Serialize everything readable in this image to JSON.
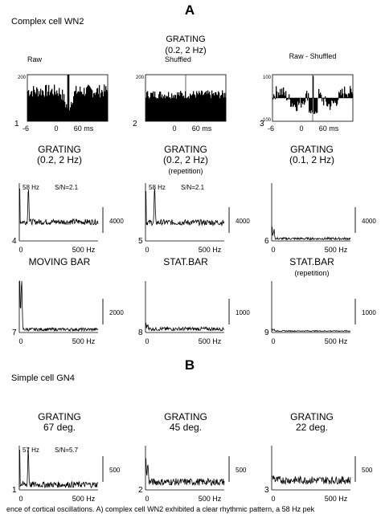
{
  "figure": {
    "section_a_label": "A",
    "section_a_cell": "Complex cell WN2",
    "section_b_label": "B",
    "section_b_cell": "Simple cell GN4",
    "caption_fragment": "ence of cortical oscillations. A) complex cell WN2 exhibited a clear rhythmic pattern, a 58 Hz pek"
  },
  "histograms": [
    {
      "id": "1",
      "title": [
        "Raw"
      ],
      "ytick_top": "200",
      "xticks": [
        "-6",
        "0",
        "0",
        "60 ms"
      ],
      "profile": "raw",
      "level": 130,
      "noise": 28,
      "peak": 200
    },
    {
      "id": "2",
      "title": [
        "GRATING",
        "(0.2, 2 Hz)",
        "Shuffled"
      ],
      "ytick_top": "200",
      "xticks": [
        "",
        "0",
        "",
        "60 ms"
      ],
      "profile": "flat",
      "level": 115,
      "noise": 18
    },
    {
      "id": "3",
      "title": [
        "Raw - Shuffled"
      ],
      "ytick_top": "100",
      "ytick_bottom": "-100",
      "xticks": [
        "-6",
        "0",
        "0",
        "60 ms"
      ],
      "profile": "diff",
      "level": 30,
      "noise": 28
    }
  ],
  "spectra": [
    {
      "id": "4",
      "title": [
        "GRATING",
        "(0.2, 2 Hz)"
      ],
      "peak_label": "58 Hz",
      "snr_label": "S/N=2.1",
      "scale_label": "4000",
      "xticks": [
        "0",
        "500 Hz"
      ],
      "peak_value": 1.0,
      "baseline": 0.33,
      "noise": 0.05,
      "row": 0
    },
    {
      "id": "5",
      "title": [
        "GRATING",
        "(0.2, 2 Hz)",
        "(repetition)"
      ],
      "peak_label": "58 Hz",
      "snr_label": "S/N=2.1",
      "scale_label": "4000",
      "xticks": [
        "0",
        "500 Hz"
      ],
      "peak_value": 0.95,
      "baseline": 0.32,
      "noise": 0.05,
      "row": 0
    },
    {
      "id": "6",
      "title": [
        "GRATING",
        "(0.1, 2 Hz)"
      ],
      "peak_label": "",
      "snr_label": "",
      "scale_label": "4000",
      "xticks": [
        "0",
        "500 Hz"
      ],
      "peak_value": 0.18,
      "baseline": 0.04,
      "noise": 0.02,
      "row": 0
    },
    {
      "id": "7",
      "title": [
        "MOVING BAR"
      ],
      "peak_label": "",
      "snr_label": "",
      "scale_label": "2000",
      "xticks": [
        "0",
        "500 Hz"
      ],
      "peak_value": 1.0,
      "baseline": 0.06,
      "noise": 0.03,
      "row": 1
    },
    {
      "id": "8",
      "title": [
        "STAT.BAR"
      ],
      "peak_label": "",
      "snr_label": "",
      "scale_label": "1000",
      "xticks": [
        "0",
        "500 Hz"
      ],
      "peak_value": 0.15,
      "baseline": 0.07,
      "noise": 0.035,
      "row": 1
    },
    {
      "id": "9",
      "title": [
        "STAT.BAR",
        "(repetition)"
      ],
      "peak_label": "",
      "snr_label": "",
      "scale_label": "1000",
      "xticks": [
        "0",
        "500 Hz"
      ],
      "peak_value": 0.06,
      "baseline": 0.03,
      "noise": 0.01,
      "row": 1
    },
    {
      "id": "1",
      "title": [
        "GRATING",
        "67 deg."
      ],
      "peak_label": "57 Hz",
      "snr_label": "S/N=5.7",
      "scale_label": "500",
      "xticks": [
        "0",
        "500 Hz"
      ],
      "peak_value": 1.0,
      "baseline": 0.12,
      "noise": 0.07,
      "row": 2
    },
    {
      "id": "2",
      "title": [
        "GRATING",
        "45 deg."
      ],
      "peak_label": "",
      "snr_label": "",
      "scale_label": "500",
      "xticks": [
        "0",
        "500 Hz"
      ],
      "peak_value": 0.55,
      "baseline": 0.18,
      "noise": 0.08,
      "row": 2
    },
    {
      "id": "3",
      "title": [
        "GRATING",
        "22 deg."
      ],
      "peak_label": "",
      "snr_label": "",
      "scale_label": "500",
      "xticks": [
        "0",
        "500 Hz"
      ],
      "peak_value": 0.3,
      "baseline": 0.22,
      "noise": 0.09,
      "row": 2
    }
  ],
  "chart_data": [
    {
      "type": "bar",
      "panel": "1",
      "title": "Raw",
      "xlabel": "ms",
      "xlim": [
        -60,
        60
      ],
      "ylim": [
        0,
        200
      ]
    },
    {
      "type": "bar",
      "panel": "2",
      "title": "GRATING (0.2, 2 Hz) Shuffled",
      "xlabel": "ms",
      "xlim": [
        -60,
        60
      ],
      "ylim": [
        0,
        200
      ]
    },
    {
      "type": "bar",
      "panel": "3",
      "title": "Raw - Shuffled",
      "xlabel": "ms",
      "xlim": [
        -60,
        60
      ],
      "ylim": [
        -100,
        100
      ]
    },
    {
      "type": "line",
      "panel": "4",
      "title": "GRATING (0.2, 2 Hz)",
      "xlabel": "Hz",
      "xlim": [
        0,
        500
      ],
      "peak_hz": 58,
      "snr": 2.1,
      "scale_bar": 4000
    },
    {
      "type": "line",
      "panel": "5",
      "title": "GRATING (0.2, 2 Hz) (repetition)",
      "xlabel": "Hz",
      "xlim": [
        0,
        500
      ],
      "peak_hz": 58,
      "snr": 2.1,
      "scale_bar": 4000
    },
    {
      "type": "line",
      "panel": "6",
      "title": "GRATING (0.1, 2 Hz)",
      "xlabel": "Hz",
      "xlim": [
        0,
        500
      ],
      "scale_bar": 4000
    },
    {
      "type": "line",
      "panel": "7",
      "title": "MOVING BAR",
      "xlabel": "Hz",
      "xlim": [
        0,
        500
      ],
      "scale_bar": 2000
    },
    {
      "type": "line",
      "panel": "8",
      "title": "STAT.BAR",
      "xlabel": "Hz",
      "xlim": [
        0,
        500
      ],
      "scale_bar": 1000
    },
    {
      "type": "line",
      "panel": "9",
      "title": "STAT.BAR (repetition)",
      "xlabel": "Hz",
      "xlim": [
        0,
        500
      ],
      "scale_bar": 1000
    },
    {
      "type": "line",
      "panel": "B1",
      "title": "GRATING 67 deg.",
      "xlabel": "Hz",
      "xlim": [
        0,
        500
      ],
      "peak_hz": 57,
      "snr": 5.7,
      "scale_bar": 500
    },
    {
      "type": "line",
      "panel": "B2",
      "title": "GRATING 45 deg.",
      "xlabel": "Hz",
      "xlim": [
        0,
        500
      ],
      "scale_bar": 500
    },
    {
      "type": "line",
      "panel": "B3",
      "title": "GRATING 22 deg.",
      "xlabel": "Hz",
      "xlim": [
        0,
        500
      ],
      "scale_bar": 500
    }
  ]
}
